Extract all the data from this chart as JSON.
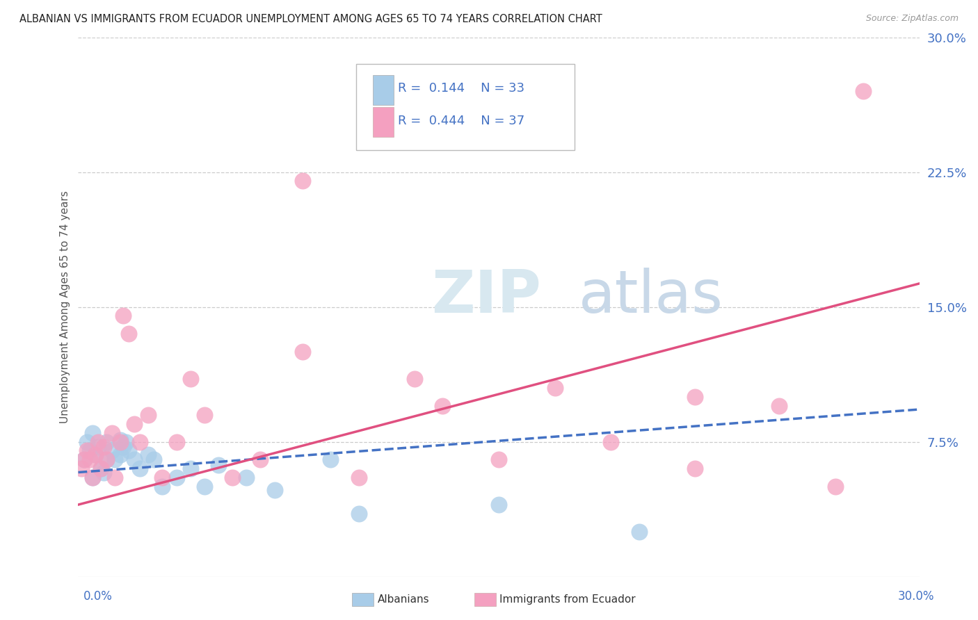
{
  "title": "ALBANIAN VS IMMIGRANTS FROM ECUADOR UNEMPLOYMENT AMONG AGES 65 TO 74 YEARS CORRELATION CHART",
  "source": "Source: ZipAtlas.com",
  "ylabel": "Unemployment Among Ages 65 to 74 years",
  "xlim": [
    0,
    0.3
  ],
  "ylim": [
    0,
    0.3
  ],
  "yticks": [
    0.075,
    0.15,
    0.225,
    0.3
  ],
  "ytick_labels": [
    "7.5%",
    "15.0%",
    "22.5%",
    "30.0%"
  ],
  "legend_r1": "0.144",
  "legend_n1": "33",
  "legend_r2": "0.444",
  "legend_n2": "37",
  "color_albanian": "#a8cce8",
  "color_ecuador": "#f4a0c0",
  "color_line_albanian": "#4472c4",
  "color_line_ecuador": "#e05080",
  "watermark_zip": "ZIP",
  "watermark_atlas": "atlas",
  "background_color": "#ffffff",
  "alb_line_y0": 0.058,
  "alb_line_y1": 0.093,
  "ecu_line_y0": 0.04,
  "ecu_line_y1": 0.163
}
